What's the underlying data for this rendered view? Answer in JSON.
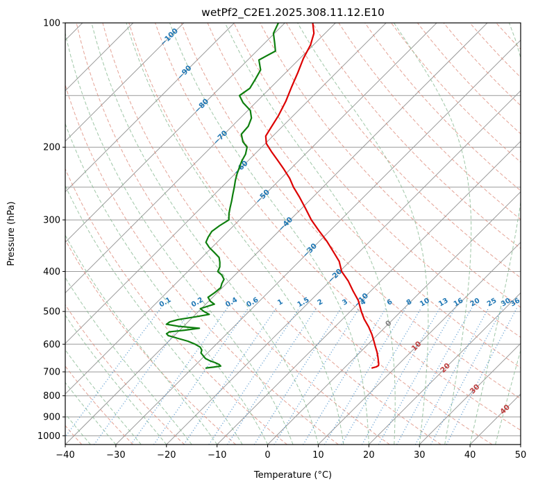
{
  "title": "wetPf2_C2E1.2025.308.11.12.E10",
  "axes": {
    "x": {
      "label": "Temperature (°C)",
      "ticks": [
        -40,
        -30,
        -20,
        -10,
        0,
        10,
        20,
        30,
        40,
        50
      ]
    },
    "y": {
      "label": "Pressure (hPa)",
      "ticks": [
        100,
        200,
        300,
        400,
        500,
        600,
        700,
        800,
        900,
        1000
      ]
    }
  },
  "chart_data": {
    "type": "line",
    "variant": "skew-t-log-p",
    "title": "wetPf2_C2E1.2025.308.11.12.E10",
    "xlabel": "Temperature (°C)",
    "ylabel": "Pressure (hPa)",
    "xlim": [
      -40,
      50
    ],
    "pressure_range_hpa": [
      1050,
      100
    ],
    "y_scale": "log",
    "skew_angle_deg": 45,
    "grid": true,
    "isobar_gridlines_hpa": [
      100,
      150,
      200,
      250,
      300,
      400,
      500,
      600,
      700,
      800,
      900,
      1000
    ],
    "isotherms_c": {
      "min": -160,
      "max": 50,
      "step": 10
    },
    "dry_adiabats_theta_c": {
      "min": -40,
      "max": 190,
      "step": 10
    },
    "moist_adiabats_start_c": {
      "min": -40,
      "max": 50,
      "step": 5
    },
    "mixing_ratio_lines_g_kg": [
      0.1,
      0.2,
      0.4,
      0.6,
      1,
      1.5,
      2,
      3,
      4,
      6,
      8,
      10,
      13,
      16,
      20,
      25,
      30,
      36
    ],
    "mixing_ratio_label_pressure_hpa": 475,
    "mixing_ratio_top_hpa": 490,
    "isotherm_label_theta_k": 326.5,
    "isotherm_labels": [
      {
        "value": -100,
        "color": "#1f77b4"
      },
      {
        "value": -90,
        "color": "#1f77b4"
      },
      {
        "value": -80,
        "color": "#1f77b4"
      },
      {
        "value": -70,
        "color": "#1f77b4"
      },
      {
        "value": -60,
        "color": "#1f77b4"
      },
      {
        "value": -50,
        "color": "#1f77b4"
      },
      {
        "value": -40,
        "color": "#1f77b4"
      },
      {
        "value": -30,
        "color": "#1f77b4"
      },
      {
        "value": -20,
        "color": "#1f77b4"
      },
      {
        "value": -10,
        "color": "#1f77b4"
      },
      {
        "value": 0,
        "color": "#808080"
      },
      {
        "value": 10,
        "color": "#bf3f3f"
      },
      {
        "value": 20,
        "color": "#bf3f3f"
      },
      {
        "value": 30,
        "color": "#bf3f3f"
      },
      {
        "value": 40,
        "color": "#bf3f3f"
      }
    ],
    "series": [
      {
        "name": "temperature",
        "color": "#dd0000",
        "points": [
          [
            100,
            -74.5
          ],
          [
            106,
            -72.2
          ],
          [
            113,
            -70.6
          ],
          [
            122,
            -69.3
          ],
          [
            132,
            -67.6
          ],
          [
            143,
            -66.0
          ],
          [
            155,
            -64.3
          ],
          [
            168,
            -62.9
          ],
          [
            180,
            -62.0
          ],
          [
            188,
            -61.4
          ],
          [
            196,
            -59.8
          ],
          [
            205,
            -57.2
          ],
          [
            215,
            -54.3
          ],
          [
            226,
            -51.3
          ],
          [
            238,
            -48.3
          ],
          [
            250,
            -45.8
          ],
          [
            264,
            -42.7
          ],
          [
            280,
            -39.5
          ],
          [
            300,
            -35.8
          ],
          [
            318,
            -32.3
          ],
          [
            338,
            -28.5
          ],
          [
            358,
            -25.2
          ],
          [
            378,
            -22.1
          ],
          [
            400,
            -19.6
          ],
          [
            422,
            -16.4
          ],
          [
            446,
            -13.5
          ],
          [
            470,
            -10.6
          ],
          [
            500,
            -7.8
          ],
          [
            522,
            -5.7
          ],
          [
            545,
            -3.3
          ],
          [
            568,
            -1.2
          ],
          [
            588,
            0.4
          ],
          [
            608,
            1.9
          ],
          [
            628,
            3.4
          ],
          [
            645,
            4.5
          ],
          [
            658,
            5.3
          ],
          [
            668,
            5.9
          ],
          [
            676,
            6.3
          ],
          [
            681,
            6.1
          ],
          [
            685,
            5.5
          ]
        ]
      },
      {
        "name": "dewpoint",
        "color": "#0e7f0e",
        "points": [
          [
            100,
            -81.3
          ],
          [
            106,
            -80.2
          ],
          [
            112,
            -78.0
          ],
          [
            117,
            -76.3
          ],
          [
            123,
            -77.8
          ],
          [
            130,
            -75.5
          ],
          [
            137,
            -74.7
          ],
          [
            144,
            -74.0
          ],
          [
            150,
            -74.6
          ],
          [
            156,
            -72.5
          ],
          [
            163,
            -69.5
          ],
          [
            170,
            -67.8
          ],
          [
            178,
            -66.8
          ],
          [
            186,
            -66.6
          ],
          [
            194,
            -64.8
          ],
          [
            200,
            -62.9
          ],
          [
            208,
            -61.8
          ],
          [
            216,
            -61.2
          ],
          [
            224,
            -60.4
          ],
          [
            232,
            -59.6
          ],
          [
            241,
            -58.6
          ],
          [
            250,
            -57.5
          ],
          [
            260,
            -56.4
          ],
          [
            270,
            -55.3
          ],
          [
            280,
            -54.3
          ],
          [
            290,
            -53.3
          ],
          [
            300,
            -52.1
          ],
          [
            310,
            -52.8
          ],
          [
            320,
            -53.2
          ],
          [
            330,
            -52.8
          ],
          [
            340,
            -52.2
          ],
          [
            350,
            -50.5
          ],
          [
            360,
            -48.5
          ],
          [
            370,
            -46.6
          ],
          [
            380,
            -45.5
          ],
          [
            390,
            -44.6
          ],
          [
            400,
            -44.1
          ],
          [
            408,
            -42.6
          ],
          [
            418,
            -41.3
          ],
          [
            428,
            -40.9
          ],
          [
            438,
            -40.3
          ],
          [
            450,
            -40.5
          ],
          [
            462,
            -40.9
          ],
          [
            472,
            -39.7
          ],
          [
            480,
            -38.3
          ],
          [
            492,
            -40.2
          ],
          [
            500,
            -38.9
          ],
          [
            508,
            -37.3
          ],
          [
            515,
            -39.5
          ],
          [
            523,
            -42.4
          ],
          [
            530,
            -43.6
          ],
          [
            537,
            -43.8
          ],
          [
            543,
            -41.0
          ],
          [
            549,
            -36.5
          ],
          [
            555,
            -39.0
          ],
          [
            560,
            -41.7
          ],
          [
            566,
            -41.9
          ],
          [
            572,
            -41.2
          ],
          [
            580,
            -39.0
          ],
          [
            590,
            -36.2
          ],
          [
            600,
            -34.2
          ],
          [
            610,
            -32.6
          ],
          [
            620,
            -31.7
          ],
          [
            630,
            -31.3
          ],
          [
            640,
            -30.3
          ],
          [
            650,
            -29.3
          ],
          [
            658,
            -28.0
          ],
          [
            665,
            -26.6
          ],
          [
            672,
            -25.4
          ],
          [
            678,
            -24.8
          ],
          [
            682,
            -26.0
          ],
          [
            685,
            -27.3
          ]
        ]
      }
    ],
    "colors": {
      "isotherm_grid": "#999999",
      "isobar_grid": "#999999",
      "dry_adiabat": "#dd8b7a",
      "moist_adiabat": "#86b890",
      "mixing_ratio_line": "#5b9bd0",
      "mixing_ratio_label": "#1f77b4",
      "frame": "#000000",
      "tick_label": "#000000"
    }
  }
}
